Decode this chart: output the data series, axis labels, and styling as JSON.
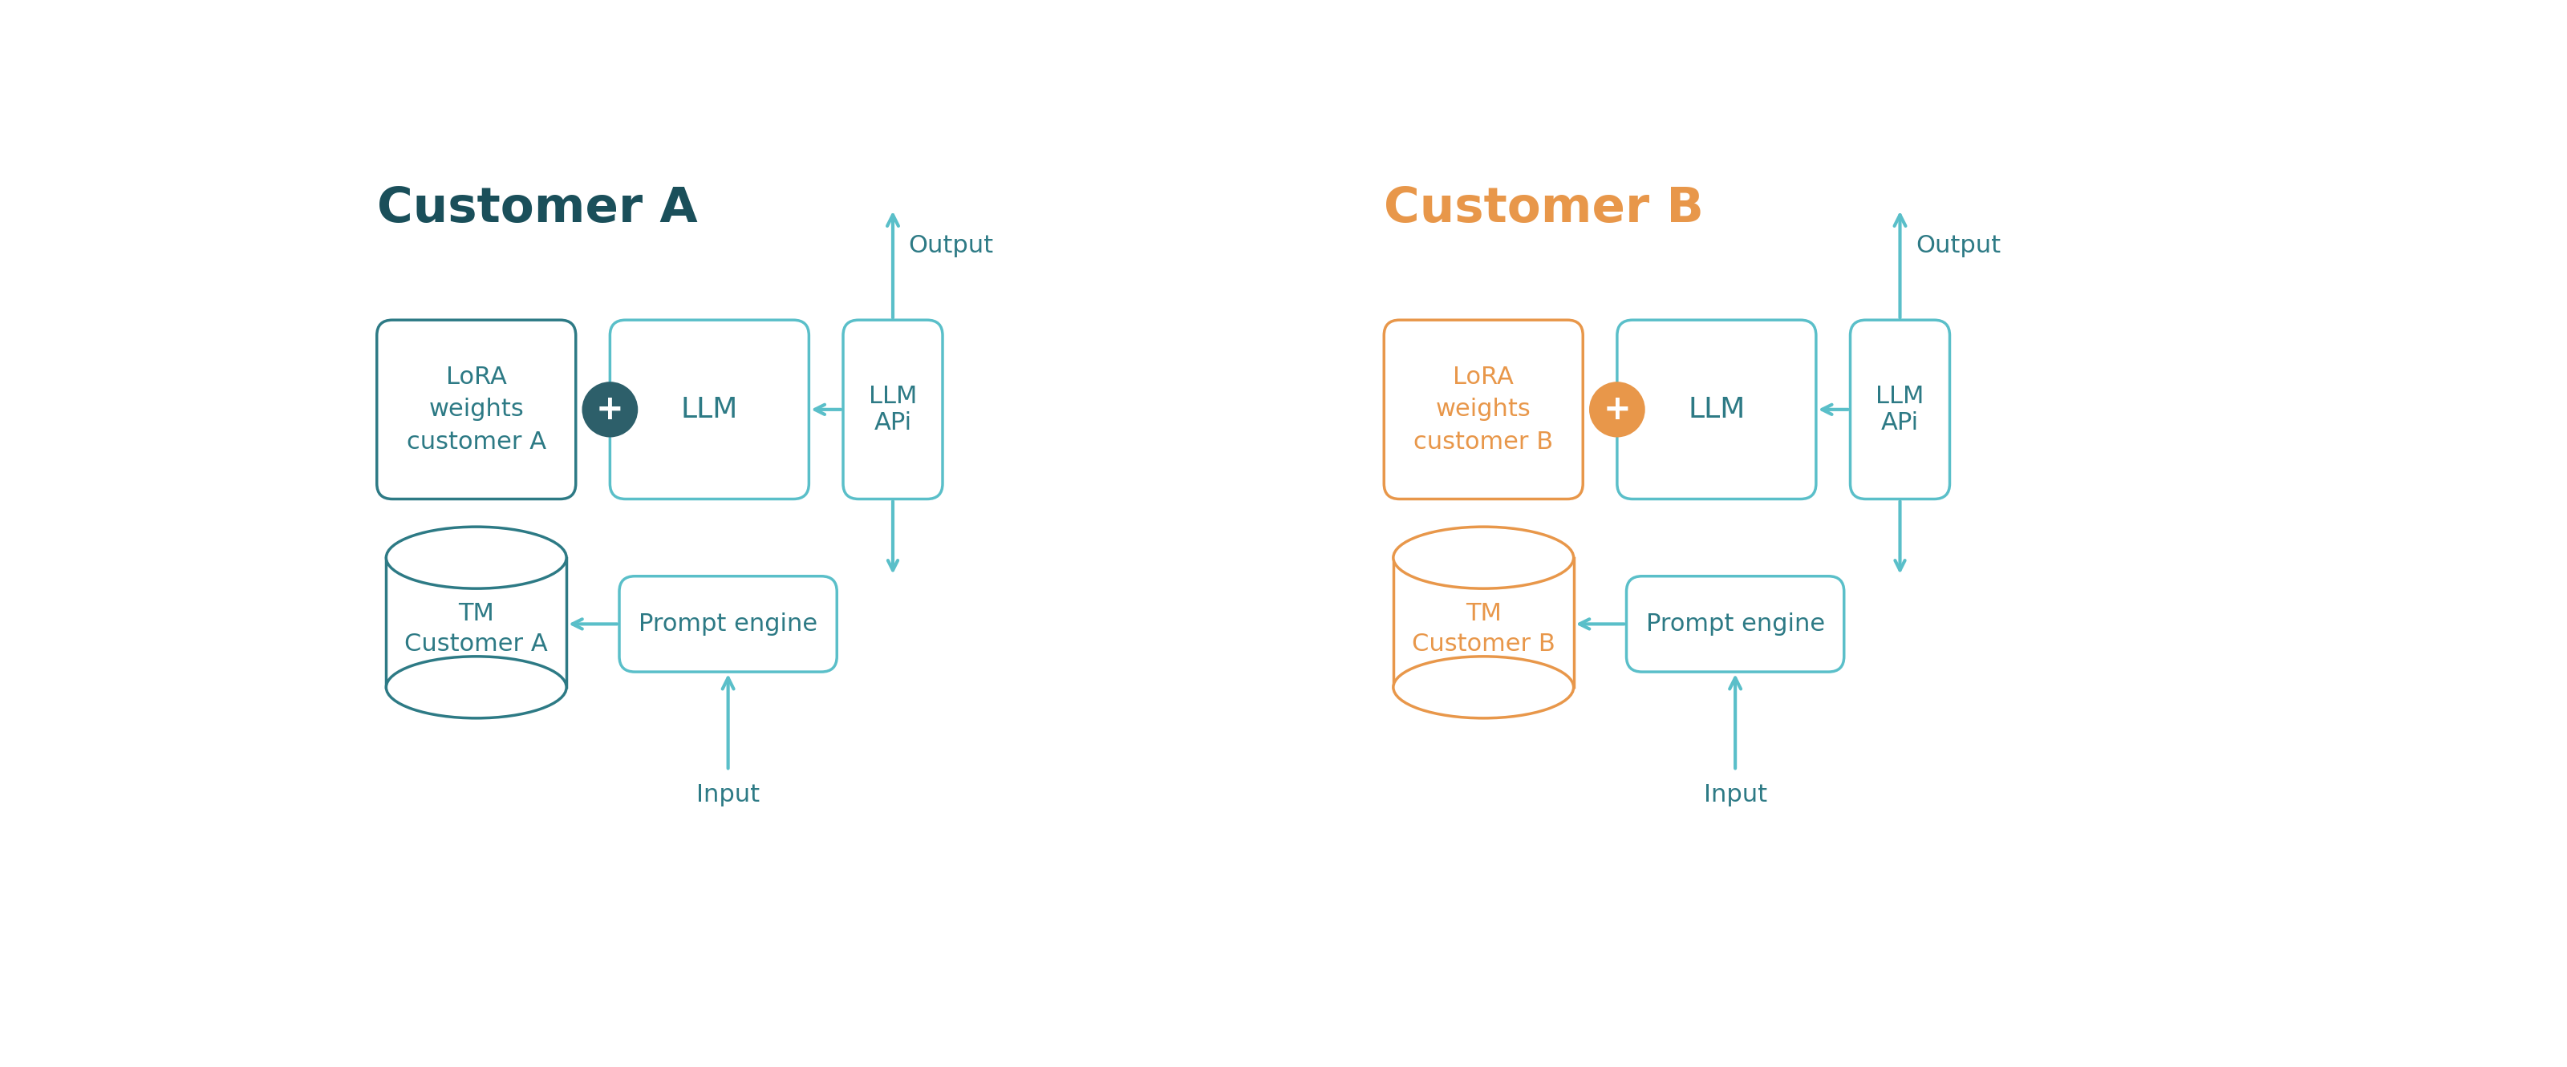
{
  "bg_color": "#ffffff",
  "teal": "#5abfc9",
  "teal_dark": "#2d7a85",
  "orange": "#e8974a",
  "dark_text": "#2d7a85",
  "title_color_A": "#1a4f5a",
  "title_color_B": "#e8974a",
  "title_A": "Customer A",
  "title_B": "Customer B",
  "lora_A": "LoRA\nweights\ncustomer A",
  "lora_B": "LoRA\nweights\ncustomer B",
  "llm_label": "LLM",
  "llm_api_label": "LLM\nAPi",
  "prompt_label": "Prompt engine",
  "tm_A": "TM\nCustomer A",
  "tm_B": "TM\nCustomer B",
  "output_label": "Output",
  "input_label": "Input",
  "plus_color_A": "#2d5f6a",
  "plus_color_B": "#e8974a"
}
